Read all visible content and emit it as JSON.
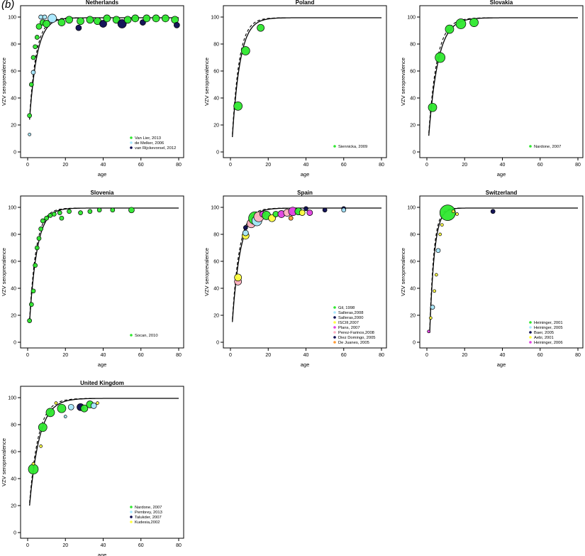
{
  "panel_label": "(b)",
  "colors": {
    "green": "#2ee82e",
    "lightblue": "#a8e8ff",
    "navy": "#0a0a50",
    "magenta": "#e040e0",
    "pink": "#ffb0c0",
    "yellow": "#ffff40",
    "orange": "#ff9933",
    "gray": "#b0b0b0"
  },
  "chart_data": [
    {
      "type": "scatter",
      "title": "Netherlands",
      "xlabel": "age",
      "ylabel": "VZV seroprevalence",
      "xlim": [
        0,
        80
      ],
      "ylim": [
        0,
        100
      ],
      "xticks": [
        "0",
        "20",
        "40",
        "60",
        "80"
      ],
      "yticks": [
        "0",
        "20",
        "40",
        "60",
        "80",
        "100"
      ],
      "curve_k": 0.25,
      "curve_x0": 1.0,
      "curve_y0": 24,
      "legend": [
        {
          "name": "Van Lier, 2013",
          "color": "green"
        },
        {
          "name": "de Melker, 2006",
          "color": "lightblue"
        },
        {
          "name": "van Rijckevorsel, 2012",
          "color": "navy"
        }
      ],
      "points": [
        {
          "x": 1,
          "y": 13,
          "c": "lightblue",
          "s": 2
        },
        {
          "x": 1,
          "y": 27,
          "c": "green",
          "s": 3
        },
        {
          "x": 2,
          "y": 50,
          "c": "green",
          "s": 3
        },
        {
          "x": 3,
          "y": 70,
          "c": "green",
          "s": 3
        },
        {
          "x": 3,
          "y": 59,
          "c": "lightblue",
          "s": 3
        },
        {
          "x": 4,
          "y": 78,
          "c": "green",
          "s": 3
        },
        {
          "x": 5,
          "y": 85,
          "c": "green",
          "s": 3
        },
        {
          "x": 6,
          "y": 93,
          "c": "green",
          "s": 4
        },
        {
          "x": 7,
          "y": 100,
          "c": "lightblue",
          "s": 3
        },
        {
          "x": 8,
          "y": 96,
          "c": "green",
          "s": 4
        },
        {
          "x": 9,
          "y": 100,
          "c": "lightblue",
          "s": 3
        },
        {
          "x": 10,
          "y": 95,
          "c": "green",
          "s": 5
        },
        {
          "x": 13,
          "y": 99,
          "c": "lightblue",
          "s": 6
        },
        {
          "x": 18,
          "y": 96,
          "c": "green",
          "s": 5
        },
        {
          "x": 22,
          "y": 98,
          "c": "green",
          "s": 5
        },
        {
          "x": 27,
          "y": 92,
          "c": "navy",
          "s": 4
        },
        {
          "x": 28,
          "y": 97,
          "c": "green",
          "s": 5
        },
        {
          "x": 33,
          "y": 98,
          "c": "green",
          "s": 5
        },
        {
          "x": 37,
          "y": 97,
          "c": "green",
          "s": 5
        },
        {
          "x": 40,
          "y": 95,
          "c": "navy",
          "s": 5
        },
        {
          "x": 42,
          "y": 99,
          "c": "green",
          "s": 5
        },
        {
          "x": 47,
          "y": 98,
          "c": "green",
          "s": 5
        },
        {
          "x": 50,
          "y": 95,
          "c": "navy",
          "s": 6
        },
        {
          "x": 53,
          "y": 98,
          "c": "green",
          "s": 5
        },
        {
          "x": 57,
          "y": 99,
          "c": "green",
          "s": 5
        },
        {
          "x": 61,
          "y": 96,
          "c": "navy",
          "s": 4
        },
        {
          "x": 63,
          "y": 99,
          "c": "green",
          "s": 5
        },
        {
          "x": 68,
          "y": 99,
          "c": "green",
          "s": 5
        },
        {
          "x": 73,
          "y": 99,
          "c": "green",
          "s": 5
        },
        {
          "x": 78,
          "y": 98,
          "c": "green",
          "s": 5
        },
        {
          "x": 79,
          "y": 94,
          "c": "navy",
          "s": 4
        }
      ]
    },
    {
      "type": "scatter",
      "title": "Poland",
      "xlabel": "age",
      "ylabel": "VZV seroprevalence",
      "xlim": [
        0,
        80
      ],
      "ylim": [
        0,
        100
      ],
      "xticks": [
        "0",
        "20",
        "40",
        "60",
        "80"
      ],
      "yticks": [
        "0",
        "20",
        "40",
        "60",
        "80",
        "100"
      ],
      "curve_k": 0.24,
      "curve_x0": 1.0,
      "curve_y0": 11,
      "legend": [
        {
          "name": "Siennicka, 2009",
          "color": "green"
        }
      ],
      "points": [
        {
          "x": 4,
          "y": 34,
          "c": "green",
          "s": 6
        },
        {
          "x": 8,
          "y": 75,
          "c": "green",
          "s": 6
        },
        {
          "x": 16,
          "y": 92,
          "c": "green",
          "s": 5
        }
      ]
    },
    {
      "type": "scatter",
      "title": "Slovakia",
      "xlabel": "age",
      "ylabel": "VZV seroprevalence",
      "xlim": [
        0,
        80
      ],
      "ylim": [
        0,
        100
      ],
      "xticks": [
        "0",
        "20",
        "40",
        "60",
        "80"
      ],
      "yticks": [
        "0",
        "20",
        "40",
        "60",
        "80",
        "100"
      ],
      "curve_k": 0.2,
      "curve_x0": 1.0,
      "curve_y0": 12,
      "legend": [
        {
          "name": "Nardone, 2007",
          "color": "green"
        }
      ],
      "points": [
        {
          "x": 3,
          "y": 33,
          "c": "green",
          "s": 6
        },
        {
          "x": 7,
          "y": 70,
          "c": "green",
          "s": 7
        },
        {
          "x": 12,
          "y": 91,
          "c": "green",
          "s": 6
        },
        {
          "x": 18,
          "y": 95,
          "c": "green",
          "s": 7
        },
        {
          "x": 25,
          "y": 96,
          "c": "green",
          "s": 6
        }
      ]
    },
    {
      "type": "scatter",
      "title": "Slovenia",
      "xlabel": "age",
      "ylabel": "VZV seroprevalence",
      "xlim": [
        0,
        80
      ],
      "ylim": [
        0,
        100
      ],
      "xticks": [
        "0",
        "20",
        "40",
        "60",
        "80"
      ],
      "yticks": [
        "0",
        "20",
        "40",
        "60",
        "80",
        "100"
      ],
      "curve_k": 0.25,
      "curve_x0": 1.0,
      "curve_y0": 15,
      "legend": [
        {
          "name": "Socan, 2010",
          "color": "green"
        }
      ],
      "points": [
        {
          "x": 1,
          "y": 16,
          "c": "green",
          "s": 3
        },
        {
          "x": 2,
          "y": 28,
          "c": "green",
          "s": 3
        },
        {
          "x": 3,
          "y": 38,
          "c": "green",
          "s": 3
        },
        {
          "x": 4,
          "y": 57,
          "c": "green",
          "s": 3
        },
        {
          "x": 5,
          "y": 70,
          "c": "green",
          "s": 3
        },
        {
          "x": 6,
          "y": 77,
          "c": "green",
          "s": 3
        },
        {
          "x": 7,
          "y": 84,
          "c": "green",
          "s": 3
        },
        {
          "x": 8,
          "y": 90,
          "c": "green",
          "s": 3
        },
        {
          "x": 10,
          "y": 92,
          "c": "green",
          "s": 3
        },
        {
          "x": 12,
          "y": 94,
          "c": "green",
          "s": 3
        },
        {
          "x": 14,
          "y": 95,
          "c": "green",
          "s": 3
        },
        {
          "x": 17,
          "y": 96,
          "c": "green",
          "s": 3
        },
        {
          "x": 18,
          "y": 92,
          "c": "green",
          "s": 3
        },
        {
          "x": 22,
          "y": 97,
          "c": "green",
          "s": 3
        },
        {
          "x": 28,
          "y": 96,
          "c": "green",
          "s": 3
        },
        {
          "x": 33,
          "y": 97,
          "c": "green",
          "s": 3
        },
        {
          "x": 38,
          "y": 98,
          "c": "green",
          "s": 3
        },
        {
          "x": 45,
          "y": 98,
          "c": "green",
          "s": 3
        },
        {
          "x": 55,
          "y": 98,
          "c": "green",
          "s": 4
        }
      ]
    },
    {
      "type": "scatter",
      "title": "Spain",
      "xlabel": "age",
      "ylabel": "VZV seroprevalence",
      "xlim": [
        0,
        80
      ],
      "ylim": [
        0,
        100
      ],
      "xticks": [
        "0",
        "20",
        "40",
        "60",
        "80"
      ],
      "yticks": [
        "0",
        "20",
        "40",
        "60",
        "80",
        "100"
      ],
      "curve_k": 0.23,
      "curve_x0": 1.0,
      "curve_y0": 15,
      "legend": [
        {
          "name": "Gil, 1998",
          "color": "green"
        },
        {
          "name": "Salleras,2008",
          "color": "lightblue"
        },
        {
          "name": "Salleras,2000",
          "color": "navy"
        },
        {
          "name": "ISCIII,2007",
          "color": "yellow"
        },
        {
          "name": "Plans, 2007",
          "color": "magenta"
        },
        {
          "name": "Perez-Farinos,2008",
          "color": "pink"
        },
        {
          "name": "Diez Domingo, 2005",
          "color": "navy"
        },
        {
          "name": "De Juanes, 2005",
          "color": "orange"
        }
      ],
      "points": [
        {
          "x": 4,
          "y": 45,
          "c": "pink",
          "s": 5
        },
        {
          "x": 4,
          "y": 48,
          "c": "yellow",
          "s": 5
        },
        {
          "x": 8,
          "y": 79,
          "c": "yellow",
          "s": 5
        },
        {
          "x": 8,
          "y": 81,
          "c": "lightblue",
          "s": 4
        },
        {
          "x": 8,
          "y": 85,
          "c": "navy",
          "s": 3
        },
        {
          "x": 11,
          "y": 88,
          "c": "pink",
          "s": 6
        },
        {
          "x": 13,
          "y": 92,
          "c": "green",
          "s": 9
        },
        {
          "x": 14,
          "y": 90,
          "c": "lightblue",
          "s": 7
        },
        {
          "x": 15,
          "y": 93,
          "c": "pink",
          "s": 7
        },
        {
          "x": 17,
          "y": 95,
          "c": "magenta",
          "s": 4
        },
        {
          "x": 19,
          "y": 94,
          "c": "green",
          "s": 6
        },
        {
          "x": 22,
          "y": 92,
          "c": "yellow",
          "s": 5
        },
        {
          "x": 24,
          "y": 95,
          "c": "green",
          "s": 4
        },
        {
          "x": 27,
          "y": 95,
          "c": "magenta",
          "s": 5
        },
        {
          "x": 30,
          "y": 96,
          "c": "pink",
          "s": 5
        },
        {
          "x": 32,
          "y": 92,
          "c": "orange",
          "s": 3
        },
        {
          "x": 33,
          "y": 97,
          "c": "magenta",
          "s": 6
        },
        {
          "x": 36,
          "y": 97,
          "c": "green",
          "s": 5
        },
        {
          "x": 38,
          "y": 96,
          "c": "yellow",
          "s": 4
        },
        {
          "x": 40,
          "y": 99,
          "c": "navy",
          "s": 3
        },
        {
          "x": 42,
          "y": 96,
          "c": "magenta",
          "s": 4
        },
        {
          "x": 50,
          "y": 98,
          "c": "navy",
          "s": 3
        },
        {
          "x": 60,
          "y": 99,
          "c": "navy",
          "s": 3
        },
        {
          "x": 60,
          "y": 98,
          "c": "lightblue",
          "s": 3
        }
      ]
    },
    {
      "type": "scatter",
      "title": "Switzerland",
      "xlabel": "age",
      "ylabel": "VZV seroprevalence",
      "xlim": [
        0,
        80
      ],
      "ylim": [
        0,
        100
      ],
      "xticks": [
        "0",
        "20",
        "40",
        "60",
        "80"
      ],
      "yticks": [
        "0",
        "20",
        "40",
        "60",
        "80",
        "100"
      ],
      "curve_k": 0.4,
      "curve_x0": 1.5,
      "curve_y0": 7,
      "legend": [
        {
          "name": "Heininger, 2001",
          "color": "green"
        },
        {
          "name": "Heininger, 2005",
          "color": "lightblue"
        },
        {
          "name": "Baer, 2005",
          "color": "navy"
        },
        {
          "name": "Aebi, 2001",
          "color": "yellow"
        },
        {
          "name": "Heininger, 2006",
          "color": "magenta"
        }
      ],
      "points": [
        {
          "x": 1,
          "y": 8,
          "c": "magenta",
          "s": 2
        },
        {
          "x": 2,
          "y": 18,
          "c": "yellow",
          "s": 2
        },
        {
          "x": 3,
          "y": 26,
          "c": "lightblue",
          "s": 3
        },
        {
          "x": 4,
          "y": 38,
          "c": "yellow",
          "s": 2
        },
        {
          "x": 5,
          "y": 50,
          "c": "yellow",
          "s": 2
        },
        {
          "x": 6,
          "y": 68,
          "c": "lightblue",
          "s": 3
        },
        {
          "x": 7,
          "y": 80,
          "c": "yellow",
          "s": 2
        },
        {
          "x": 8,
          "y": 87,
          "c": "yellow",
          "s": 2
        },
        {
          "x": 11,
          "y": 96,
          "c": "green",
          "s": 11
        },
        {
          "x": 14,
          "y": 97,
          "c": "yellow",
          "s": 2
        },
        {
          "x": 16,
          "y": 95,
          "c": "yellow",
          "s": 2
        },
        {
          "x": 35,
          "y": 97,
          "c": "navy",
          "s": 3
        }
      ]
    },
    {
      "type": "scatter",
      "title": "United Kingdom",
      "xlabel": "age",
      "ylabel": "VZV seroprevalence",
      "xlim": [
        0,
        80
      ],
      "ylim": [
        0,
        100
      ],
      "xticks": [
        "0",
        "20",
        "40",
        "60",
        "80"
      ],
      "yticks": [
        "0",
        "20",
        "40",
        "60",
        "80",
        "100"
      ],
      "curve_k": 0.19,
      "curve_x0": 1.0,
      "curve_y0": 20,
      "legend": [
        {
          "name": "Nardone, 2007",
          "color": "green"
        },
        {
          "name": "Pembrey, 2013",
          "color": "lightblue"
        },
        {
          "name": "Talukder, 2007",
          "color": "navy"
        },
        {
          "name": "Kudesia,2002",
          "color": "yellow"
        }
      ],
      "points": [
        {
          "x": 3,
          "y": 47,
          "c": "green",
          "s": 7
        },
        {
          "x": 3,
          "y": 51,
          "c": "yellow",
          "s": 2
        },
        {
          "x": 7,
          "y": 64,
          "c": "yellow",
          "s": 2
        },
        {
          "x": 8,
          "y": 78,
          "c": "green",
          "s": 6
        },
        {
          "x": 12,
          "y": 89,
          "c": "green",
          "s": 6
        },
        {
          "x": 15,
          "y": 96,
          "c": "yellow",
          "s": 2
        },
        {
          "x": 18,
          "y": 92,
          "c": "green",
          "s": 6
        },
        {
          "x": 20,
          "y": 86,
          "c": "lightblue",
          "s": 2
        },
        {
          "x": 23,
          "y": 93,
          "c": "lightblue",
          "s": 4
        },
        {
          "x": 28,
          "y": 93,
          "c": "navy",
          "s": 5
        },
        {
          "x": 30,
          "y": 92,
          "c": "green",
          "s": 5
        },
        {
          "x": 33,
          "y": 95,
          "c": "green",
          "s": 5
        },
        {
          "x": 35,
          "y": 94,
          "c": "lightblue",
          "s": 4
        },
        {
          "x": 37,
          "y": 96,
          "c": "yellow",
          "s": 2
        }
      ]
    }
  ]
}
